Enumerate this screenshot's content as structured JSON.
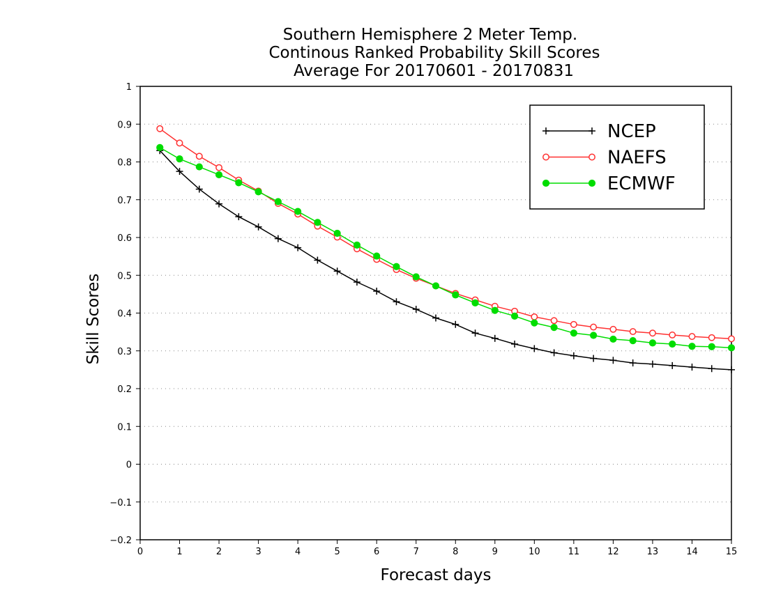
{
  "chart_data": {
    "type": "line",
    "title": [
      "Southern Hemisphere 2 Meter Temp.",
      "Continous Ranked Probability Skill Scores",
      "Average For 20170601 - 20170831"
    ],
    "xlabel": "Forecast days",
    "ylabel": "Skill Scores",
    "xlim": [
      0,
      15
    ],
    "ylim": [
      -0.2,
      1
    ],
    "xticks": [
      0,
      1,
      2,
      3,
      4,
      5,
      6,
      7,
      8,
      9,
      10,
      11,
      12,
      13,
      14,
      15
    ],
    "yticks": [
      -0.2,
      -0.1,
      0,
      0.1,
      0.2,
      0.3,
      0.4,
      0.5,
      0.6,
      0.7,
      0.8,
      0.9,
      1
    ],
    "ytick_labels": [
      "−0.2",
      "−0.1",
      "0",
      "0.1",
      "0.2",
      "0.3",
      "0.4",
      "0.5",
      "0.6",
      "0.7",
      "0.8",
      "0.9",
      "1"
    ],
    "grid": "horizontal dotted",
    "legend_position": "top-right",
    "x": [
      0.5,
      1,
      1.5,
      2,
      2.5,
      3,
      3.5,
      4,
      4.5,
      5,
      5.5,
      6,
      6.5,
      7,
      7.5,
      8,
      8.5,
      9,
      9.5,
      10,
      10.5,
      11,
      11.5,
      12,
      12.5,
      13,
      13.5,
      14,
      14.5,
      15
    ],
    "series": [
      {
        "name": "NCEP",
        "color": "#000000",
        "marker": "plus",
        "values": [
          0.83,
          0.775,
          0.728,
          0.689,
          0.655,
          0.628,
          0.597,
          0.573,
          0.54,
          0.511,
          0.482,
          0.458,
          0.43,
          0.41,
          0.387,
          0.37,
          0.347,
          0.333,
          0.318,
          0.306,
          0.295,
          0.287,
          0.28,
          0.275,
          0.268,
          0.265,
          0.261,
          0.257,
          0.253,
          0.25
        ]
      },
      {
        "name": "NAEFS",
        "color": "#ff3030",
        "marker": "open-circle",
        "values": [
          0.888,
          0.85,
          0.815,
          0.785,
          0.752,
          0.723,
          0.69,
          0.662,
          0.63,
          0.601,
          0.57,
          0.542,
          0.515,
          0.492,
          0.472,
          0.452,
          0.435,
          0.418,
          0.405,
          0.39,
          0.38,
          0.37,
          0.363,
          0.357,
          0.351,
          0.347,
          0.342,
          0.338,
          0.335,
          0.332
        ]
      },
      {
        "name": "ECMWF",
        "color": "#00dd00",
        "marker": "filled-circle",
        "values": [
          0.838,
          0.808,
          0.787,
          0.766,
          0.745,
          0.721,
          0.695,
          0.669,
          0.64,
          0.611,
          0.58,
          0.551,
          0.523,
          0.496,
          0.472,
          0.448,
          0.427,
          0.407,
          0.392,
          0.374,
          0.362,
          0.347,
          0.341,
          0.331,
          0.327,
          0.321,
          0.318,
          0.312,
          0.311,
          0.308
        ]
      }
    ]
  }
}
